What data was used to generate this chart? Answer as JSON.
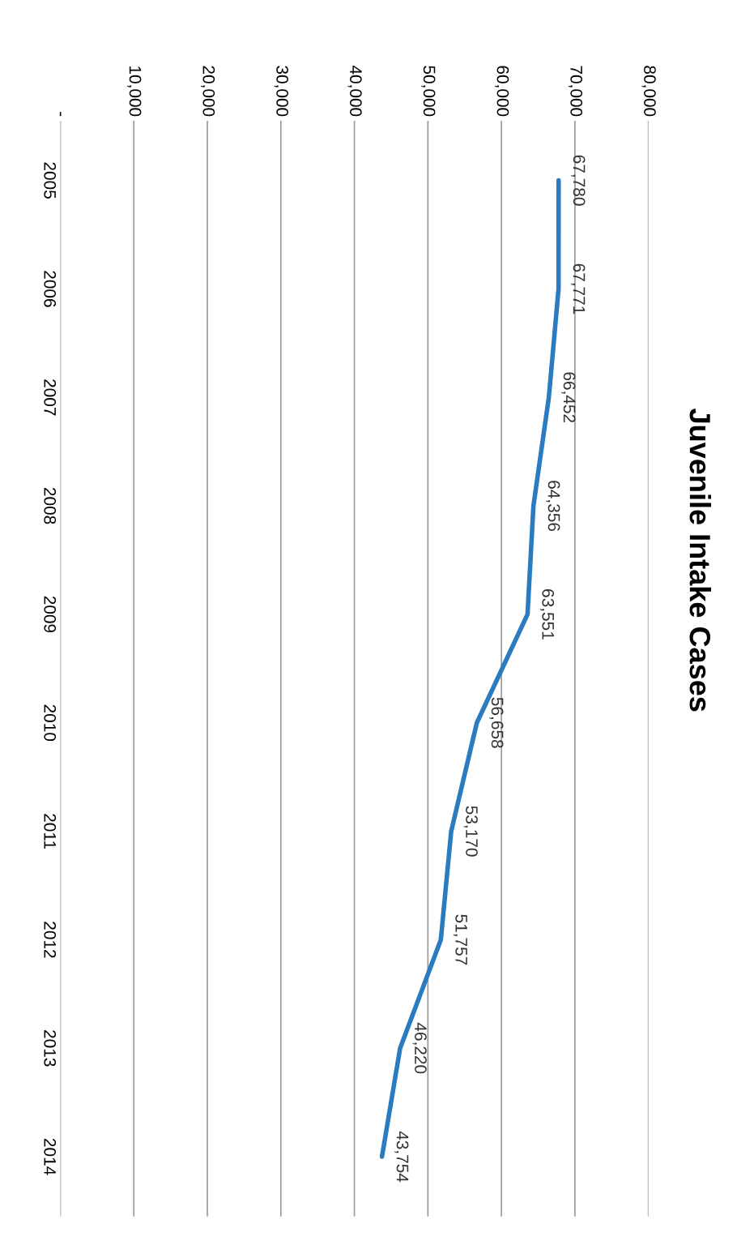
{
  "chart_data": {
    "type": "line",
    "title": "Juvenile Intake Cases",
    "orientation": "horizontal",
    "categories": [
      "2005",
      "2006",
      "2007",
      "2008",
      "2009",
      "2010",
      "2011",
      "2012",
      "2013",
      "2014"
    ],
    "series": [
      {
        "color": "#2a7bc0",
        "values": [
          67780,
          67771,
          66452,
          64356,
          63551,
          56658,
          53170,
          51757,
          46220,
          43754
        ]
      }
    ],
    "xlim": [
      0,
      80000
    ],
    "xticks": [
      {
        "value": 0,
        "label": "-"
      },
      {
        "value": 10000,
        "label": "10,000"
      },
      {
        "value": 20000,
        "label": "20,000"
      },
      {
        "value": 30000,
        "label": "30,000"
      },
      {
        "value": 40000,
        "label": "40,000"
      },
      {
        "value": 50000,
        "label": "50,000"
      },
      {
        "value": 60000,
        "label": "60,000"
      },
      {
        "value": 70000,
        "label": "70,000"
      },
      {
        "value": 80000,
        "label": "80,000"
      }
    ],
    "grid": "x",
    "legend": false,
    "marker": "none",
    "line_style": "solid",
    "value_labels": [
      "67,780",
      "67,771",
      "66,452",
      "64,356",
      "63,551",
      "56,658",
      "53,170",
      "51,757",
      "46,220",
      "43,754"
    ]
  }
}
